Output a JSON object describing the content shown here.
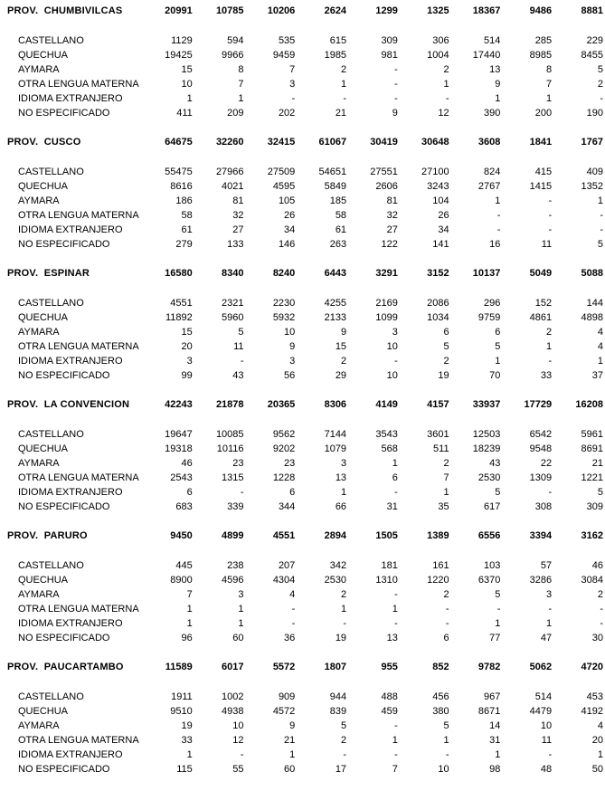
{
  "table": {
    "row_labels": [
      "CASTELLANO",
      "QUECHUA",
      "AYMARA",
      "OTRA LENGUA MATERNA",
      "IDIOMA EXTRANJERO",
      "NO ESPECIFICADO"
    ],
    "provinces": [
      {
        "name": "PROV.  CHUMBIVILCAS",
        "totals": [
          "20991",
          "10785",
          "10206",
          "2624",
          "1299",
          "1325",
          "18367",
          "9486",
          "8881"
        ],
        "rows": [
          [
            "1129",
            "594",
            "535",
            "615",
            "309",
            "306",
            "514",
            "285",
            "229"
          ],
          [
            "19425",
            "9966",
            "9459",
            "1985",
            "981",
            "1004",
            "17440",
            "8985",
            "8455"
          ],
          [
            "15",
            "8",
            "7",
            "2",
            "-",
            "2",
            "13",
            "8",
            "5"
          ],
          [
            "10",
            "7",
            "3",
            "1",
            "-",
            "1",
            "9",
            "7",
            "2"
          ],
          [
            "1",
            "1",
            "-",
            "-",
            "-",
            "-",
            "1",
            "1",
            "-"
          ],
          [
            "411",
            "209",
            "202",
            "21",
            "9",
            "12",
            "390",
            "200",
            "190"
          ]
        ]
      },
      {
        "name": "PROV.  CUSCO",
        "totals": [
          "64675",
          "32260",
          "32415",
          "61067",
          "30419",
          "30648",
          "3608",
          "1841",
          "1767"
        ],
        "rows": [
          [
            "55475",
            "27966",
            "27509",
            "54651",
            "27551",
            "27100",
            "824",
            "415",
            "409"
          ],
          [
            "8616",
            "4021",
            "4595",
            "5849",
            "2606",
            "3243",
            "2767",
            "1415",
            "1352"
          ],
          [
            "186",
            "81",
            "105",
            "185",
            "81",
            "104",
            "1",
            "-",
            "1"
          ],
          [
            "58",
            "32",
            "26",
            "58",
            "32",
            "26",
            "-",
            "-",
            "-"
          ],
          [
            "61",
            "27",
            "34",
            "61",
            "27",
            "34",
            "-",
            "-",
            "-"
          ],
          [
            "279",
            "133",
            "146",
            "263",
            "122",
            "141",
            "16",
            "11",
            "5"
          ]
        ]
      },
      {
        "name": "PROV.  ESPINAR",
        "totals": [
          "16580",
          "8340",
          "8240",
          "6443",
          "3291",
          "3152",
          "10137",
          "5049",
          "5088"
        ],
        "rows": [
          [
            "4551",
            "2321",
            "2230",
            "4255",
            "2169",
            "2086",
            "296",
            "152",
            "144"
          ],
          [
            "11892",
            "5960",
            "5932",
            "2133",
            "1099",
            "1034",
            "9759",
            "4861",
            "4898"
          ],
          [
            "15",
            "5",
            "10",
            "9",
            "3",
            "6",
            "6",
            "2",
            "4"
          ],
          [
            "20",
            "11",
            "9",
            "15",
            "10",
            "5",
            "5",
            "1",
            "4"
          ],
          [
            "3",
            "-",
            "3",
            "2",
            "-",
            "2",
            "1",
            "-",
            "1"
          ],
          [
            "99",
            "43",
            "56",
            "29",
            "10",
            "19",
            "70",
            "33",
            "37"
          ]
        ]
      },
      {
        "name": "PROV.  LA CONVENCION",
        "totals": [
          "42243",
          "21878",
          "20365",
          "8306",
          "4149",
          "4157",
          "33937",
          "17729",
          "16208"
        ],
        "rows": [
          [
            "19647",
            "10085",
            "9562",
            "7144",
            "3543",
            "3601",
            "12503",
            "6542",
            "5961"
          ],
          [
            "19318",
            "10116",
            "9202",
            "1079",
            "568",
            "511",
            "18239",
            "9548",
            "8691"
          ],
          [
            "46",
            "23",
            "23",
            "3",
            "1",
            "2",
            "43",
            "22",
            "21"
          ],
          [
            "2543",
            "1315",
            "1228",
            "13",
            "6",
            "7",
            "2530",
            "1309",
            "1221"
          ],
          [
            "6",
            "-",
            "6",
            "1",
            "-",
            "1",
            "5",
            "-",
            "5"
          ],
          [
            "683",
            "339",
            "344",
            "66",
            "31",
            "35",
            "617",
            "308",
            "309"
          ]
        ]
      },
      {
        "name": "PROV.  PARURO",
        "totals": [
          "9450",
          "4899",
          "4551",
          "2894",
          "1505",
          "1389",
          "6556",
          "3394",
          "3162"
        ],
        "rows": [
          [
            "445",
            "238",
            "207",
            "342",
            "181",
            "161",
            "103",
            "57",
            "46"
          ],
          [
            "8900",
            "4596",
            "4304",
            "2530",
            "1310",
            "1220",
            "6370",
            "3286",
            "3084"
          ],
          [
            "7",
            "3",
            "4",
            "2",
            "-",
            "2",
            "5",
            "3",
            "2"
          ],
          [
            "1",
            "1",
            "-",
            "1",
            "1",
            "-",
            "-",
            "-",
            "-"
          ],
          [
            "1",
            "1",
            "-",
            "-",
            "-",
            "-",
            "1",
            "1",
            "-"
          ],
          [
            "96",
            "60",
            "36",
            "19",
            "13",
            "6",
            "77",
            "47",
            "30"
          ]
        ]
      },
      {
        "name": "PROV.  PAUCARTAMBO",
        "totals": [
          "11589",
          "6017",
          "5572",
          "1807",
          "955",
          "852",
          "9782",
          "5062",
          "4720"
        ],
        "rows": [
          [
            "1911",
            "1002",
            "909",
            "944",
            "488",
            "456",
            "967",
            "514",
            "453"
          ],
          [
            "9510",
            "4938",
            "4572",
            "839",
            "459",
            "380",
            "8671",
            "4479",
            "4192"
          ],
          [
            "19",
            "10",
            "9",
            "5",
            "-",
            "5",
            "14",
            "10",
            "4"
          ],
          [
            "33",
            "12",
            "21",
            "2",
            "1",
            "1",
            "31",
            "11",
            "20"
          ],
          [
            "1",
            "-",
            "1",
            "-",
            "-",
            "-",
            "1",
            "-",
            "1"
          ],
          [
            "115",
            "55",
            "60",
            "17",
            "7",
            "10",
            "98",
            "48",
            "50"
          ]
        ]
      }
    ]
  }
}
